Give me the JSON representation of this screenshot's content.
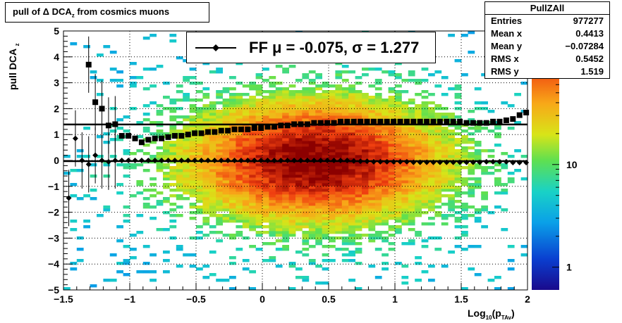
{
  "title": {
    "pre": "pull of ",
    "delta": "Δ",
    "mid": " DCA",
    "sub": "z",
    "post": " from cosmics muons"
  },
  "stats": {
    "name": "PullZAll",
    "rows": [
      {
        "k": "Entries",
        "v": "977277"
      },
      {
        "k": "Mean x",
        "v": "0.4413"
      },
      {
        "k": "Mean y",
        "v": "−0.07284"
      },
      {
        "k": "RMS x",
        "v": "0.5452"
      },
      {
        "k": "RMS y",
        "v": "1.519"
      }
    ]
  },
  "legend": {
    "label": "FF μ = -0.075, σ =   1.277"
  },
  "axes": {
    "ylabel_main": "pull DCA",
    "ylabel_sub": "z",
    "xlabel_main": "Log",
    "xlabel_sub1": "10",
    "xlabel_mid": "(p",
    "xlabel_sub2": "TAv",
    "xlabel_end": ")"
  },
  "chart_data": {
    "type": "heatmap",
    "xlim": [
      -1.5,
      2
    ],
    "ylim": [
      -5,
      5
    ],
    "x_ticks": [
      "−1.5",
      "−1",
      "−0.5",
      "0",
      "0.5",
      "1",
      "1.5",
      "2"
    ],
    "y_ticks": [
      "−5",
      "−4",
      "−3",
      "−2",
      "−1",
      "0",
      "1",
      "2",
      "3",
      "4",
      "5"
    ],
    "grid": true,
    "colorbar": {
      "scale": "log",
      "tick_labels": [
        "1",
        "10"
      ]
    },
    "density": {
      "center_x": 0.4,
      "center_y": 0.0,
      "sigma_x": 0.55,
      "sigma_y": 1.3
    },
    "series": [
      {
        "name": "mu",
        "marker": "diamond",
        "x": [
          -1.46,
          -1.41,
          -1.36,
          -1.31,
          -1.26,
          -1.21,
          -1.16,
          -1.11,
          -1.06,
          -1.01,
          -0.96,
          -0.91,
          -0.86,
          -0.81,
          -0.76,
          -0.71,
          -0.66,
          -0.61,
          -0.56,
          -0.51,
          -0.46,
          -0.41,
          -0.36,
          -0.31,
          -0.26,
          -0.21,
          -0.16,
          -0.11,
          -0.06,
          -0.01,
          0.04,
          0.09,
          0.14,
          0.19,
          0.24,
          0.29,
          0.34,
          0.39,
          0.44,
          0.49,
          0.54,
          0.59,
          0.64,
          0.69,
          0.74,
          0.79,
          0.84,
          0.89,
          0.94,
          0.99,
          1.04,
          1.09,
          1.14,
          1.19,
          1.24,
          1.29,
          1.34,
          1.39,
          1.44,
          1.49,
          1.54,
          1.59,
          1.64,
          1.69,
          1.74,
          1.79,
          1.84,
          1.89,
          1.94,
          1.99
        ],
        "y": [
          -1.45,
          0.85,
          0.0,
          -0.15,
          0.2,
          0.0,
          -0.05,
          0.0,
          0.0,
          0.0,
          0.0,
          0.0,
          0.0,
          0.0,
          0.0,
          0.0,
          0.0,
          0.0,
          0.0,
          0.0,
          0.0,
          0.0,
          0.0,
          0.0,
          0.0,
          0.0,
          0.0,
          0.0,
          0.0,
          0.0,
          0.0,
          0.0,
          0.0,
          0.0,
          0.0,
          0.0,
          0.0,
          0.0,
          0.0,
          0.0,
          0.0,
          0.0,
          0.0,
          -0.02,
          -0.03,
          -0.03,
          -0.05,
          -0.05,
          -0.05,
          -0.05,
          -0.05,
          -0.05,
          -0.07,
          -0.07,
          -0.07,
          -0.07,
          -0.07,
          -0.07,
          -0.07,
          -0.07,
          -0.07,
          -0.07,
          -0.07,
          -0.05,
          -0.05,
          -0.05,
          -0.05,
          -0.08,
          -0.08,
          -0.08
        ]
      },
      {
        "name": "sigma",
        "marker": "square",
        "x": [
          -1.31,
          -1.26,
          -1.21,
          -1.16,
          -1.11,
          -1.06,
          -1.01,
          -0.96,
          -0.91,
          -0.86,
          -0.81,
          -0.76,
          -0.71,
          -0.66,
          -0.61,
          -0.56,
          -0.51,
          -0.46,
          -0.41,
          -0.36,
          -0.31,
          -0.26,
          -0.21,
          -0.16,
          -0.11,
          -0.06,
          -0.01,
          0.04,
          0.09,
          0.14,
          0.19,
          0.24,
          0.29,
          0.34,
          0.39,
          0.44,
          0.49,
          0.54,
          0.59,
          0.64,
          0.69,
          0.74,
          0.79,
          0.84,
          0.89,
          0.94,
          0.99,
          1.04,
          1.09,
          1.14,
          1.19,
          1.24,
          1.29,
          1.34,
          1.39,
          1.44,
          1.49,
          1.54,
          1.59,
          1.64,
          1.69,
          1.74,
          1.79,
          1.84,
          1.89,
          1.94,
          1.99
        ],
        "y": [
          3.7,
          2.25,
          2.0,
          1.35,
          1.4,
          0.95,
          0.95,
          0.85,
          0.7,
          0.8,
          0.85,
          0.85,
          0.9,
          0.95,
          0.95,
          1.0,
          1.05,
          1.05,
          1.1,
          1.1,
          1.15,
          1.15,
          1.2,
          1.2,
          1.2,
          1.25,
          1.25,
          1.3,
          1.3,
          1.35,
          1.35,
          1.4,
          1.4,
          1.4,
          1.45,
          1.45,
          1.45,
          1.45,
          1.5,
          1.5,
          1.5,
          1.5,
          1.5,
          1.5,
          1.5,
          1.5,
          1.5,
          1.5,
          1.5,
          1.5,
          1.5,
          1.5,
          1.5,
          1.5,
          1.5,
          1.5,
          1.5,
          1.45,
          1.45,
          1.45,
          1.45,
          1.5,
          1.5,
          1.55,
          1.6,
          1.75,
          1.85
        ]
      }
    ]
  }
}
